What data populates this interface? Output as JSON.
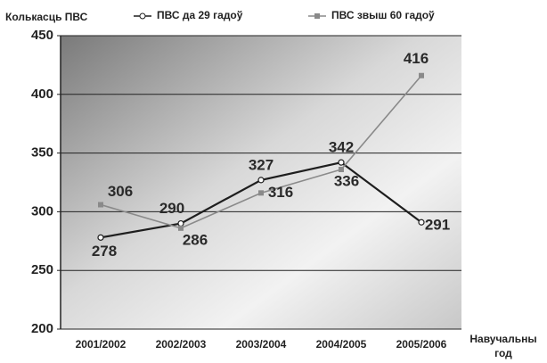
{
  "chart_data": {
    "type": "line",
    "y_axis_label": "Колькасць ПВС",
    "x_axis_label": "Навучальны год",
    "categories": [
      "2001/2002",
      "2002/2003",
      "2003/2004",
      "2004/2005",
      "2005/2006"
    ],
    "series": [
      {
        "name": "ПВС да 29 гадоў",
        "color": "#1e1e1e",
        "marker": "circle",
        "values": [
          278,
          290,
          327,
          342,
          291
        ]
      },
      {
        "name": "ПВС звыш 60 гадоў",
        "color": "#8a8a8a",
        "marker": "square",
        "values": [
          306,
          286,
          316,
          336,
          416
        ]
      }
    ],
    "ylim": [
      200,
      450
    ],
    "yticks": [
      200,
      250,
      300,
      350,
      400,
      450
    ],
    "grid": true
  }
}
